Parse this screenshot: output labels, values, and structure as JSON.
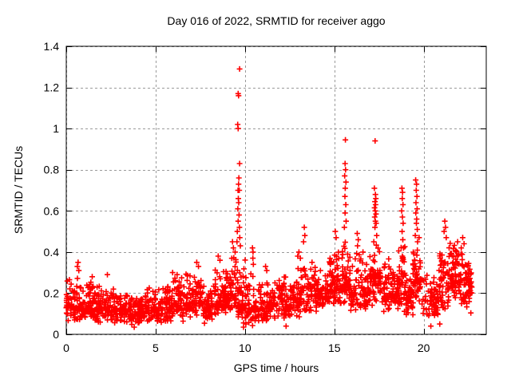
{
  "window": {
    "title": "Day 016 of 2022, SRMTID for receiver aggo"
  },
  "colors": {
    "marker": "#ff0000",
    "grid": "#9a9a9a",
    "border": "#000000",
    "background": "#ffffff"
  },
  "chart_data": {
    "type": "scatter",
    "marker": "plus",
    "title": "Day 016 of 2022, SRMTID for receiver aggo",
    "xlabel": "GPS time / hours",
    "ylabel": "SRMTID / TECUs",
    "xlim": [
      0,
      23.5
    ],
    "ylim": [
      0,
      1.4
    ],
    "grid": "dashed-at-every-tick",
    "legend": "none",
    "xticks": [
      {
        "v": 0,
        "label": "0"
      },
      {
        "v": 5,
        "label": "5"
      },
      {
        "v": 10,
        "label": "10"
      },
      {
        "v": 15,
        "label": "15"
      },
      {
        "v": 20,
        "label": "20"
      }
    ],
    "yticks": [
      {
        "v": 0,
        "label": "0"
      },
      {
        "v": 0.2,
        "label": "0.2"
      },
      {
        "v": 0.4,
        "label": "0.4"
      },
      {
        "v": 0.6,
        "label": "0.6"
      },
      {
        "v": 0.8,
        "label": "0.8"
      },
      {
        "v": 1,
        "label": "1"
      },
      {
        "v": 1.2,
        "label": "1.2"
      },
      {
        "v": 1.4,
        "label": "1.4"
      }
    ],
    "seed": 20220116,
    "notable_points": [
      [
        9.7,
        1.29
      ],
      [
        9.62,
        1.17
      ],
      [
        9.64,
        1.16
      ],
      [
        9.59,
        1.02
      ],
      [
        9.62,
        1.0
      ],
      [
        9.7,
        0.83
      ],
      [
        9.66,
        0.76
      ],
      [
        9.64,
        0.73
      ],
      [
        9.61,
        0.7
      ],
      [
        9.68,
        0.7
      ],
      [
        9.63,
        0.66
      ],
      [
        9.65,
        0.64
      ],
      [
        9.6,
        0.61
      ],
      [
        9.67,
        0.58
      ],
      [
        9.62,
        0.55
      ],
      [
        9.69,
        0.52
      ],
      [
        9.57,
        0.5
      ],
      [
        9.71,
        0.47
      ],
      [
        9.55,
        0.45
      ],
      [
        9.74,
        0.43
      ],
      [
        0.62,
        0.33
      ],
      [
        0.66,
        0.35
      ],
      [
        0.7,
        0.31
      ],
      [
        1.45,
        0.28
      ],
      [
        2.3,
        0.29
      ],
      [
        5.95,
        0.3
      ],
      [
        6.2,
        0.29
      ],
      [
        7.3,
        0.35
      ],
      [
        7.4,
        0.33
      ],
      [
        8.5,
        0.38
      ],
      [
        8.6,
        0.36
      ],
      [
        9.3,
        0.45
      ],
      [
        9.35,
        0.42
      ],
      [
        9.45,
        0.4
      ],
      [
        10.42,
        0.42
      ],
      [
        10.45,
        0.4
      ],
      [
        10.44,
        0.37
      ],
      [
        10.47,
        0.34
      ],
      [
        11.15,
        0.33
      ],
      [
        11.22,
        0.31
      ],
      [
        12.95,
        0.38
      ],
      [
        13.02,
        0.4
      ],
      [
        13.1,
        0.37
      ],
      [
        13.32,
        0.52
      ],
      [
        13.35,
        0.48
      ],
      [
        13.28,
        0.45
      ],
      [
        13.75,
        0.35
      ],
      [
        15.05,
        0.5
      ],
      [
        15.1,
        0.47
      ],
      [
        15.62,
        0.945
      ],
      [
        15.6,
        0.83
      ],
      [
        15.63,
        0.8
      ],
      [
        15.58,
        0.77
      ],
      [
        15.65,
        0.74
      ],
      [
        15.61,
        0.71
      ],
      [
        15.59,
        0.67
      ],
      [
        15.64,
        0.63
      ],
      [
        15.6,
        0.59
      ],
      [
        15.66,
        0.55
      ],
      [
        15.56,
        0.52
      ],
      [
        16.28,
        0.49
      ],
      [
        16.34,
        0.46
      ],
      [
        16.3,
        0.43
      ],
      [
        16.6,
        0.4
      ],
      [
        17.28,
        0.94
      ],
      [
        17.24,
        0.71
      ],
      [
        17.3,
        0.68
      ],
      [
        17.32,
        0.66
      ],
      [
        17.27,
        0.645
      ],
      [
        17.31,
        0.63
      ],
      [
        17.25,
        0.615
      ],
      [
        17.29,
        0.6
      ],
      [
        17.33,
        0.585
      ],
      [
        17.26,
        0.57
      ],
      [
        17.3,
        0.55
      ],
      [
        17.34,
        0.54
      ],
      [
        17.27,
        0.52
      ],
      [
        17.37,
        0.48
      ],
      [
        17.21,
        0.45
      ],
      [
        18.78,
        0.71
      ],
      [
        18.82,
        0.69
      ],
      [
        18.8,
        0.66
      ],
      [
        18.84,
        0.63
      ],
      [
        18.77,
        0.6
      ],
      [
        18.81,
        0.57
      ],
      [
        18.85,
        0.54
      ],
      [
        18.79,
        0.5
      ],
      [
        18.83,
        0.46
      ],
      [
        18.87,
        0.42
      ],
      [
        19.55,
        0.75
      ],
      [
        19.6,
        0.73
      ],
      [
        19.58,
        0.7
      ],
      [
        19.62,
        0.67
      ],
      [
        19.57,
        0.64
      ],
      [
        19.63,
        0.61
      ],
      [
        19.56,
        0.59
      ],
      [
        19.61,
        0.56
      ],
      [
        19.59,
        0.54
      ],
      [
        19.64,
        0.51
      ],
      [
        19.53,
        0.48
      ],
      [
        19.66,
        0.45
      ],
      [
        21.18,
        0.55
      ],
      [
        21.22,
        0.52
      ],
      [
        21.14,
        0.5
      ],
      [
        21.26,
        0.47
      ],
      [
        21.9,
        0.45
      ],
      [
        22.18,
        0.47
      ],
      [
        22.26,
        0.44
      ],
      [
        22.1,
        0.42
      ],
      [
        9.92,
        0.035
      ],
      [
        10.05,
        0.05
      ],
      [
        20.4,
        0.04
      ],
      [
        3.8,
        0.035
      ],
      [
        12.3,
        0.04
      ],
      [
        20.9,
        0.05
      ]
    ],
    "noise_bands_x0_x1_ymin_ymode_ymax_n": [
      [
        0.0,
        0.8,
        0.06,
        0.14,
        0.3,
        75
      ],
      [
        0.8,
        1.6,
        0.05,
        0.13,
        0.27,
        75
      ],
      [
        1.6,
        2.6,
        0.05,
        0.13,
        0.28,
        85
      ],
      [
        2.6,
        3.4,
        0.05,
        0.12,
        0.22,
        70
      ],
      [
        3.4,
        4.4,
        0.04,
        0.11,
        0.2,
        80
      ],
      [
        4.4,
        5.2,
        0.05,
        0.12,
        0.24,
        70
      ],
      [
        5.2,
        6.0,
        0.05,
        0.13,
        0.28,
        70
      ],
      [
        6.0,
        6.6,
        0.06,
        0.14,
        0.3,
        55
      ],
      [
        6.6,
        7.6,
        0.07,
        0.16,
        0.33,
        80
      ],
      [
        7.6,
        8.3,
        0.05,
        0.12,
        0.25,
        60
      ],
      [
        8.3,
        9.0,
        0.08,
        0.17,
        0.36,
        70
      ],
      [
        9.0,
        9.6,
        0.1,
        0.2,
        0.42,
        60
      ],
      [
        9.6,
        10.1,
        0.04,
        0.15,
        0.4,
        55
      ],
      [
        10.1,
        10.7,
        0.04,
        0.13,
        0.3,
        50
      ],
      [
        10.7,
        11.7,
        0.05,
        0.13,
        0.27,
        85
      ],
      [
        11.7,
        12.6,
        0.06,
        0.15,
        0.3,
        80
      ],
      [
        12.6,
        13.6,
        0.08,
        0.18,
        0.36,
        80
      ],
      [
        13.6,
        14.6,
        0.1,
        0.19,
        0.33,
        85
      ],
      [
        14.6,
        15.4,
        0.12,
        0.24,
        0.45,
        85
      ],
      [
        15.4,
        15.9,
        0.12,
        0.25,
        0.48,
        50
      ],
      [
        15.9,
        17.0,
        0.1,
        0.2,
        0.42,
        95
      ],
      [
        17.0,
        17.6,
        0.12,
        0.25,
        0.45,
        60
      ],
      [
        17.6,
        18.6,
        0.1,
        0.2,
        0.37,
        85
      ],
      [
        18.6,
        19.0,
        0.1,
        0.25,
        0.48,
        45
      ],
      [
        19.0,
        19.4,
        0.08,
        0.17,
        0.3,
        40
      ],
      [
        19.4,
        19.9,
        0.12,
        0.28,
        0.52,
        55
      ],
      [
        19.9,
        20.8,
        0.05,
        0.15,
        0.3,
        70
      ],
      [
        20.8,
        21.4,
        0.1,
        0.24,
        0.48,
        55
      ],
      [
        21.4,
        22.2,
        0.13,
        0.27,
        0.46,
        85
      ],
      [
        22.2,
        22.7,
        0.1,
        0.24,
        0.38,
        55
      ]
    ]
  }
}
